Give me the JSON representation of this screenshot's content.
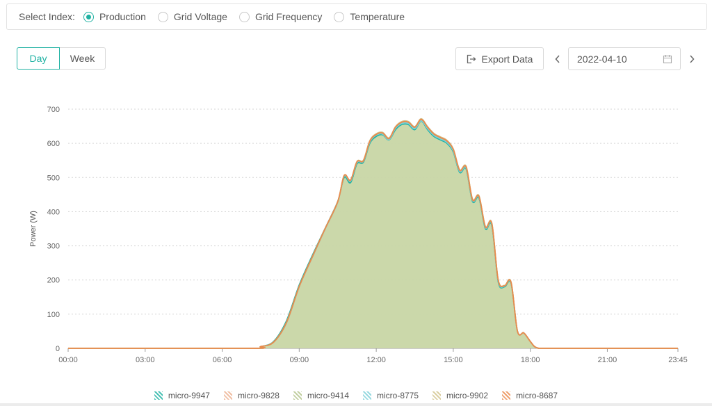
{
  "index_selector": {
    "label": "Select Index:",
    "options": [
      {
        "label": "Production",
        "checked": true
      },
      {
        "label": "Grid Voltage",
        "checked": false
      },
      {
        "label": "Grid Frequency",
        "checked": false
      },
      {
        "label": "Temperature",
        "checked": false
      }
    ]
  },
  "period": {
    "day_label": "Day",
    "week_label": "Week",
    "selected": "Day"
  },
  "toolbar": {
    "export_label": "Export Data",
    "date": "2022-04-10"
  },
  "colors": {
    "accent": "#20b2a3",
    "fill": "#c9d6a9"
  },
  "chart_data": {
    "type": "area",
    "ylabel": "Power (W)",
    "xlabel": "",
    "ylim": [
      0,
      700
    ],
    "yticks": [
      0,
      100,
      200,
      300,
      400,
      500,
      600,
      700
    ],
    "xticks": [
      "00:00",
      "03:00",
      "06:00",
      "09:00",
      "12:00",
      "15:00",
      "18:00",
      "21:00",
      "23:45"
    ],
    "grid": true,
    "legend_position": "bottom",
    "x": [
      "00:00",
      "07:00",
      "07:30",
      "08:00",
      "08:30",
      "09:00",
      "09:30",
      "10:00",
      "10:30",
      "10:45",
      "11:00",
      "11:15",
      "11:30",
      "11:45",
      "12:00",
      "12:15",
      "12:30",
      "12:45",
      "13:00",
      "13:15",
      "13:30",
      "13:45",
      "14:00",
      "14:15",
      "14:30",
      "14:45",
      "15:00",
      "15:15",
      "15:30",
      "15:45",
      "16:00",
      "16:15",
      "16:30",
      "16:45",
      "17:00",
      "17:15",
      "17:30",
      "17:45",
      "18:00",
      "18:10",
      "18:20",
      "18:30",
      "18:40",
      "18:50",
      "19:00",
      "19:30",
      "20:00",
      "20:30",
      "21:00",
      "23:45"
    ],
    "series": [
      {
        "name": "micro-9947",
        "color": "#20b2a3",
        "values": [
          0,
          0,
          5,
          20,
          80,
          185,
          270,
          350,
          430,
          500,
          485,
          540,
          545,
          600,
          620,
          625,
          610,
          640,
          655,
          655,
          640,
          665,
          640,
          620,
          610,
          600,
          575,
          515,
          525,
          430,
          440,
          350,
          360,
          195,
          180,
          190,
          50,
          45,
          20,
          5,
          0,
          0,
          0,
          0,
          0,
          0,
          0,
          0,
          0,
          0
        ]
      },
      {
        "name": "micro-9828",
        "color": "#ecb08f",
        "values": [
          0,
          0,
          5,
          18,
          75,
          180,
          265,
          348,
          428,
          505,
          490,
          545,
          548,
          605,
          625,
          628,
          612,
          645,
          660,
          660,
          645,
          668,
          645,
          625,
          615,
          605,
          580,
          520,
          530,
          435,
          445,
          355,
          365,
          200,
          183,
          193,
          50,
          45,
          20,
          5,
          0,
          0,
          0,
          0,
          0,
          0,
          0,
          0,
          0,
          0
        ]
      },
      {
        "name": "micro-9414",
        "color": "#b4c48c",
        "values": [
          0,
          0,
          5,
          18,
          74,
          180,
          265,
          348,
          428,
          505,
          492,
          546,
          550,
          607,
          627,
          630,
          614,
          647,
          662,
          662,
          647,
          670,
          647,
          627,
          617,
          607,
          582,
          522,
          532,
          436,
          446,
          356,
          366,
          200,
          184,
          194,
          50,
          45,
          20,
          5,
          0,
          0,
          0,
          0,
          0,
          0,
          0,
          0,
          0,
          0
        ]
      },
      {
        "name": "micro-8775",
        "color": "#7fd0d8",
        "values": [
          0,
          0,
          5,
          18,
          74,
          180,
          265,
          348,
          428,
          505,
          490,
          544,
          548,
          604,
          624,
          627,
          611,
          644,
          658,
          658,
          643,
          666,
          643,
          623,
          613,
          603,
          578,
          518,
          528,
          433,
          443,
          353,
          363,
          198,
          182,
          192,
          50,
          45,
          20,
          5,
          0,
          0,
          0,
          0,
          0,
          0,
          0,
          0,
          0,
          0
        ]
      },
      {
        "name": "micro-9902",
        "color": "#d2c48e",
        "values": [
          0,
          0,
          5,
          18,
          75,
          180,
          266,
          349,
          429,
          506,
          493,
          547,
          551,
          608,
          628,
          632,
          616,
          649,
          664,
          664,
          649,
          672,
          649,
          629,
          619,
          609,
          584,
          523,
          533,
          437,
          447,
          357,
          367,
          201,
          184,
          194,
          50,
          45,
          20,
          5,
          0,
          0,
          0,
          0,
          0,
          0,
          0,
          0,
          0,
          0
        ]
      },
      {
        "name": "micro-8687",
        "color": "#e98a4c",
        "values": [
          0,
          0,
          5,
          18,
          75,
          181,
          266,
          349,
          429,
          506,
          492,
          546,
          549,
          606,
          626,
          630,
          614,
          647,
          662,
          662,
          647,
          670,
          647,
          627,
          617,
          607,
          582,
          521,
          531,
          435,
          445,
          355,
          365,
          200,
          183,
          193,
          50,
          45,
          20,
          5,
          0,
          0,
          0,
          0,
          0,
          0,
          0,
          0,
          0,
          0
        ]
      }
    ]
  }
}
